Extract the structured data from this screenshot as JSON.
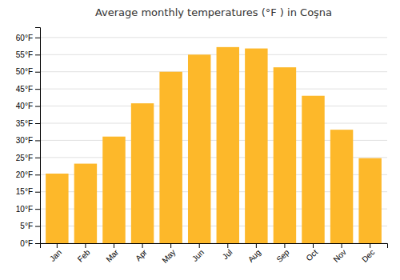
{
  "chart_data": {
    "type": "bar",
    "title": "Average monthly temperatures (°F ) in Coşna",
    "categories": [
      "Jan",
      "Feb",
      "Mar",
      "Apr",
      "May",
      "Jun",
      "Jul",
      "Aug",
      "Sep",
      "Oct",
      "Nov",
      "Dec"
    ],
    "values": [
      20.3,
      23.2,
      31.1,
      40.8,
      50.0,
      55.0,
      57.2,
      56.8,
      51.3,
      43.0,
      33.1,
      24.8
    ],
    "color": "#FDB82A",
    "ylim": [
      0,
      63
    ],
    "yticks": [
      {
        "value": 0,
        "label": "0°F"
      },
      {
        "value": 5,
        "label": "5°F"
      },
      {
        "value": 10,
        "label": "10°F"
      },
      {
        "value": 15,
        "label": "15°F"
      },
      {
        "value": 20,
        "label": "20°F"
      },
      {
        "value": 25,
        "label": "25°F"
      },
      {
        "value": 30,
        "label": "30°F"
      },
      {
        "value": 35,
        "label": "35°F"
      },
      {
        "value": 40,
        "label": "40°F"
      },
      {
        "value": 45,
        "label": "45°F"
      },
      {
        "value": 50,
        "label": "50°F"
      },
      {
        "value": 55,
        "label": "55°F"
      },
      {
        "value": 60,
        "label": "60°F"
      }
    ],
    "grid": true
  }
}
